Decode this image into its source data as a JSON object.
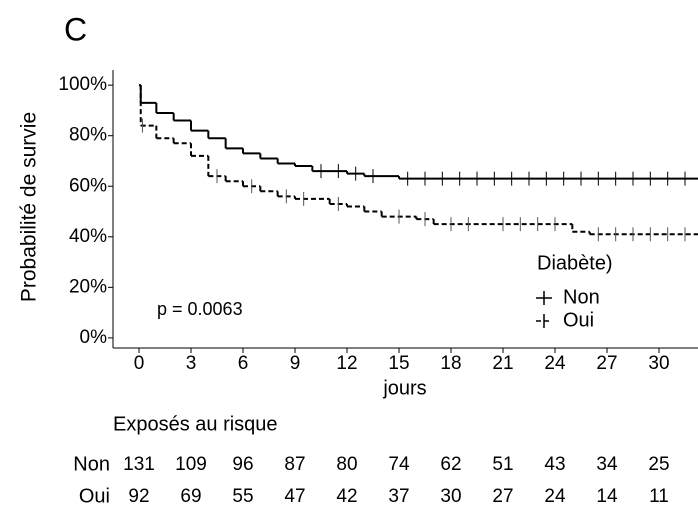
{
  "chart_data": {
    "type": "km",
    "panel_label": "C",
    "y_label": "Probabilité de survie",
    "x_label": "jours",
    "annotation": "p = 0.0063",
    "legend_title": "Diabète)",
    "xlim": [
      -1.5,
      32.25
    ],
    "xticks": [
      0,
      3,
      6,
      9,
      12,
      15,
      18,
      21,
      24,
      27,
      30
    ],
    "ylim": [
      -4,
      106
    ],
    "yticks": [
      {
        "value": 0,
        "label": "0%"
      },
      {
        "value": 20,
        "label": "20%"
      },
      {
        "value": 40,
        "label": "40%"
      },
      {
        "value": 60,
        "label": "60%"
      },
      {
        "value": 80,
        "label": "80%"
      },
      {
        "value": 100,
        "label": "100%"
      }
    ],
    "series": [
      {
        "name": "Non",
        "color": "#000000",
        "dashed": false,
        "x": [
          0,
          0.1,
          1,
          2,
          3,
          4,
          5,
          6,
          7,
          8,
          9,
          10,
          12,
          13,
          15
        ],
        "values": [
          100,
          93,
          89,
          86,
          82,
          79,
          75,
          73,
          71,
          69,
          68,
          66,
          65,
          64,
          63
        ],
        "censor_x": [
          10.5,
          11.5,
          12.5,
          13.5,
          15.5,
          16.5,
          17.5,
          18.5,
          19.5,
          20.5,
          21.5,
          22.5,
          23.5,
          24.5,
          25.5,
          26.5,
          27.5,
          28.5,
          29.5,
          30.5,
          31.5
        ],
        "censor_values": [
          66,
          66,
          65,
          64,
          63,
          63,
          63,
          63,
          63,
          63,
          63,
          63,
          63,
          63,
          63,
          63,
          63,
          63,
          63,
          63,
          63
        ]
      },
      {
        "name": "Oui",
        "color": "#000000",
        "dashed": true,
        "x": [
          0,
          0.1,
          1,
          2,
          3,
          4,
          5,
          6,
          7,
          8,
          9,
          11,
          12,
          13,
          14,
          16,
          17,
          25,
          26
        ],
        "values": [
          100,
          84,
          79,
          77,
          72,
          64,
          62,
          60,
          58,
          56,
          55,
          53,
          52,
          50,
          48,
          47,
          45,
          42,
          41
        ],
        "censor_x": [
          0.2,
          4.5,
          6.5,
          8.5,
          9.5,
          11.5,
          15,
          16.5,
          18,
          19,
          21,
          22,
          23,
          24,
          26.5,
          27.5,
          28.5,
          29.5,
          30.5,
          31.5
        ],
        "censor_values": [
          84,
          64,
          60,
          56,
          55,
          53,
          48,
          47,
          45,
          45,
          45,
          45,
          45,
          45,
          41,
          41,
          41,
          41,
          41,
          41
        ]
      }
    ]
  },
  "risk_table": {
    "title": "Exposés au risque",
    "rows": [
      {
        "name": "Non",
        "values": [
          131,
          109,
          96,
          87,
          80,
          74,
          62,
          51,
          43,
          34,
          25
        ]
      },
      {
        "name": "Oui",
        "values": [
          92,
          69,
          55,
          47,
          42,
          37,
          30,
          27,
          24,
          14,
          11
        ]
      }
    ]
  }
}
